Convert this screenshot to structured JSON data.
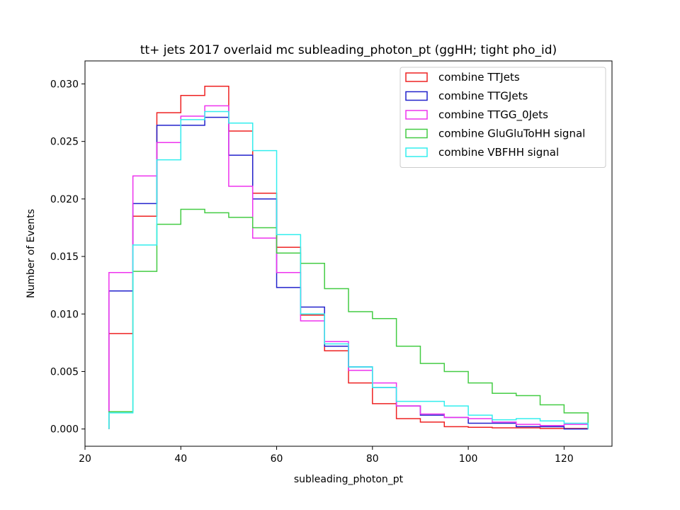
{
  "chart_data": {
    "type": "line",
    "title": "tt+ jets 2017 overlaid mc subleading_photon_pt (ggHH; tight pho_id)",
    "xlabel": "subleading_photon_pt",
    "ylabel": "Number of Events",
    "xlim": [
      20,
      130
    ],
    "ylim": [
      -0.0015,
      0.032
    ],
    "xticks": [
      20,
      40,
      60,
      80,
      100,
      120
    ],
    "yticks": [
      0.0,
      0.005,
      0.01,
      0.015,
      0.02,
      0.025,
      0.03
    ],
    "ytick_labels": [
      "0.000",
      "0.005",
      "0.010",
      "0.015",
      "0.020",
      "0.025",
      "0.030"
    ],
    "legend_position": "top-right",
    "grid": false,
    "bin_edges": [
      25,
      30,
      35,
      40,
      45,
      50,
      55,
      60,
      65,
      70,
      75,
      80,
      85,
      90,
      95,
      100,
      105,
      110,
      115,
      120,
      125
    ],
    "series": [
      {
        "name": "combine TTJets",
        "color": "#ee2222",
        "values": [
          0.0083,
          0.0185,
          0.0275,
          0.029,
          0.0298,
          0.0259,
          0.0205,
          0.0158,
          0.0099,
          0.0068,
          0.004,
          0.0022,
          0.0009,
          0.0006,
          0.0002,
          0.00015,
          0.0001,
          0.0001,
          5e-05,
          5e-05
        ]
      },
      {
        "name": "combine TTGJets",
        "color": "#2222cc",
        "values": [
          0.012,
          0.0196,
          0.0264,
          0.0264,
          0.0271,
          0.0238,
          0.02,
          0.0123,
          0.0106,
          0.0072,
          0.0054,
          0.0036,
          0.002,
          0.0012,
          0.001,
          0.0005,
          0.0005,
          0.0002,
          0.0002,
          0.0
        ]
      },
      {
        "name": "combine TTGG_0Jets",
        "color": "#ee33ee",
        "values": [
          0.0136,
          0.022,
          0.0249,
          0.0272,
          0.0281,
          0.0211,
          0.0166,
          0.0136,
          0.0094,
          0.0076,
          0.0051,
          0.004,
          0.002,
          0.0013,
          0.001,
          0.0009,
          0.0006,
          0.0004,
          0.0003,
          0.0004
        ]
      },
      {
        "name": "combine GluGluToHH signal",
        "color": "#44cc44",
        "values": [
          0.0015,
          0.0137,
          0.0178,
          0.0191,
          0.0188,
          0.0184,
          0.0175,
          0.0153,
          0.0144,
          0.0122,
          0.0102,
          0.0096,
          0.0072,
          0.0057,
          0.005,
          0.004,
          0.0031,
          0.0029,
          0.0021,
          0.0014
        ]
      },
      {
        "name": "combine VBFHH signal",
        "color": "#33eeee",
        "values": [
          0.0014,
          0.016,
          0.0234,
          0.0269,
          0.0276,
          0.0266,
          0.0242,
          0.0169,
          0.01,
          0.0074,
          0.0054,
          0.0036,
          0.0024,
          0.0024,
          0.002,
          0.0012,
          0.0008,
          0.0009,
          0.0007,
          0.0005
        ]
      }
    ]
  }
}
